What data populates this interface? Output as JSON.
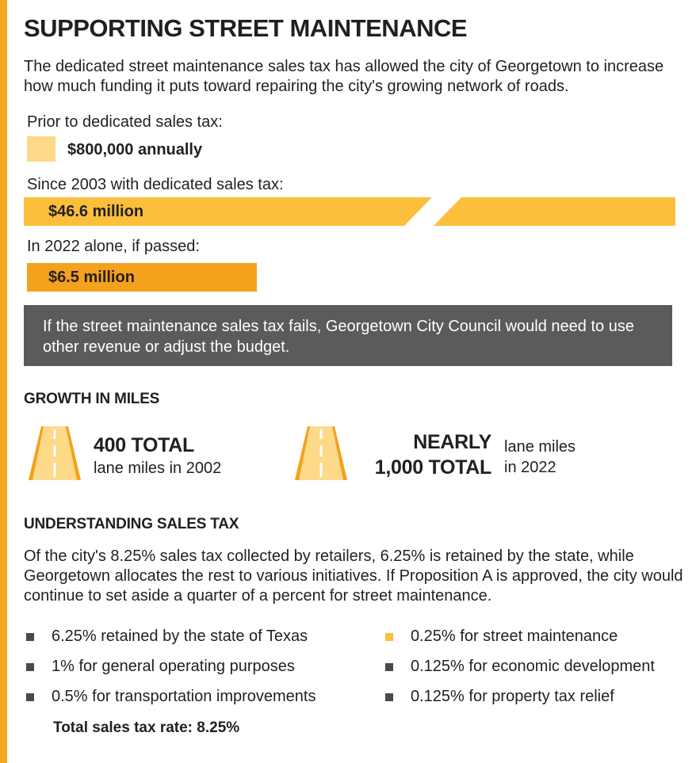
{
  "title": "SUPPORTING STREET MAINTENANCE",
  "intro": "The dedicated street maintenance sales tax has allowed the city of Georgetown to increase how much funding it puts toward repairing the city's growing network of roads.",
  "funding": {
    "items": [
      {
        "label": "Prior to dedicated sales tax:",
        "value_text": "$800,000 annually"
      },
      {
        "label": "Since 2003 with dedicated sales tax:",
        "value_text": "$46.6 million"
      },
      {
        "label": "In 2022 alone, if passed:",
        "value_text": "$6.5 million"
      }
    ]
  },
  "callout": "If the street maintenance sales tax fails, Georgetown City Council would need to use other revenue or adjust the budget.",
  "growth": {
    "heading": "GROWTH IN MILES",
    "left": {
      "big": "400 TOTAL",
      "sub": "lane miles in 2002"
    },
    "right": {
      "big_line1": "NEARLY",
      "big_line2": "1,000 TOTAL",
      "sub_line1": "lane miles",
      "sub_line2": "in 2022"
    }
  },
  "sales_tax": {
    "heading": "UNDERSTANDING SALES TAX",
    "paragraph": "Of the city's 8.25% sales tax collected by retailers, 6.25% is retained by the state, while Georgetown allocates the rest to various initiatives. If Proposition A is approved, the city would continue to set aside a quarter of a percent for street maintenance.",
    "left_items": [
      "6.25% retained by the state of Texas",
      "1% for general operating purposes",
      "0.5% for transportation improvements"
    ],
    "right_items": [
      "0.25% for street maintenance",
      "0.125% for economic development",
      "0.125% for property tax relief"
    ],
    "total": "Total sales tax rate: 8.25%"
  },
  "colors": {
    "accent": "#f5a623",
    "bar_light": "#fdd98a",
    "bar_mid": "#fbbf3c",
    "bar_dark": "#f4a11d",
    "callout_bg": "#5b5b5d",
    "bullet_dark": "#4a4a4a",
    "bullet_highlight": "#fbbf3c"
  },
  "chart_data": {
    "type": "bar",
    "categories": [
      "Prior to dedicated sales tax:",
      "Since 2003 with dedicated sales tax:",
      "In 2022 alone, if passed:"
    ],
    "values": [
      800000,
      46600000,
      6500000
    ],
    "title": "",
    "xlabel": "",
    "ylabel": "",
    "axis_break": true
  }
}
